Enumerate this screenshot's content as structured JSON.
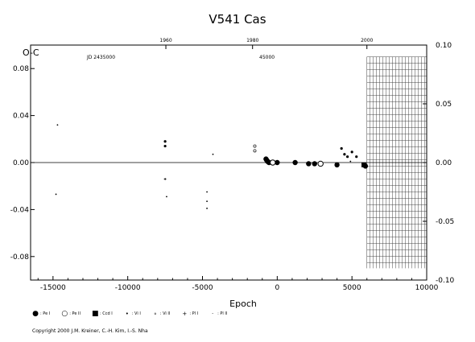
{
  "chart_data": {
    "type": "scatter",
    "title": "V541 Cas",
    "xlabel": "Epoch",
    "ylabel": "O-C",
    "xlim": [
      -16500,
      10000
    ],
    "ylim": [
      -0.1,
      0.1
    ],
    "x_ticks": [
      -15000,
      -10000,
      -5000,
      0,
      5000,
      10000
    ],
    "x_tick_labels": [
      "-15000",
      "-10000",
      "-5000",
      "0",
      "5000",
      "10000"
    ],
    "y_ticks_left": [
      0.08,
      0.04,
      0.0,
      -0.04,
      -0.08
    ],
    "y_tick_labels_left": [
      "0.08",
      "0.04",
      "0.00",
      "-0.04",
      "-0.08"
    ],
    "y_ticks_right": [
      0.1,
      0.05,
      0.0,
      -0.05,
      -0.1
    ],
    "y_tick_labels_right": [
      "0.10",
      "0.05",
      "0.00",
      "-0.05",
      "-0.10"
    ],
    "top_axis": {
      "ticks": [
        {
          "epoch": -7450,
          "label": "1960"
        },
        {
          "epoch": -1650,
          "label": "1980"
        },
        {
          "epoch": 6000,
          "label": "2000"
        }
      ],
      "jd_label": "JD 2435000",
      "jd2_label": "45000"
    },
    "hatched_region": {
      "x_from": 6000,
      "x_to": 10000,
      "y_from": -0.09,
      "y_to": 0.09
    },
    "series": [
      {
        "name": ": Pe I",
        "symbol": "big-filled",
        "points": [
          [
            -750,
            0.003
          ],
          [
            -700,
            0.002
          ],
          [
            -650,
            0.001
          ],
          [
            -600,
            0.0005
          ],
          [
            -550,
            0.0
          ],
          [
            0,
            0.0
          ],
          [
            1200,
            0.0
          ],
          [
            2100,
            -0.001
          ],
          [
            2500,
            -0.001
          ],
          [
            4000,
            -0.002
          ],
          [
            5900,
            -0.003
          ]
        ]
      },
      {
        "name": ": Pe II",
        "symbol": "big-open",
        "points": [
          [
            -300,
            0.0
          ],
          [
            2900,
            -0.001
          ]
        ]
      },
      {
        "name": ": Ccd I",
        "symbol": "filled-square",
        "points": [
          [
            5800,
            -0.002
          ]
        ]
      },
      {
        "name": ": Vi I",
        "symbol": "small-filled",
        "points": [
          [
            -7500,
            0.018
          ],
          [
            -7500,
            0.014
          ],
          [
            4300,
            0.012
          ],
          [
            4500,
            0.007
          ],
          [
            4700,
            0.005
          ],
          [
            5000,
            0.009
          ],
          [
            5300,
            0.005
          ]
        ]
      },
      {
        "name": ": Vi II",
        "symbol": "small-open",
        "points": [
          [
            -1500,
            0.014
          ],
          [
            -1500,
            0.01
          ]
        ]
      },
      {
        "name": ": Pl I",
        "symbol": "plus",
        "points": [
          [
            -7500,
            -0.014
          ]
        ]
      },
      {
        "name": ": Pl II",
        "symbol": "tiny-dot",
        "points": [
          [
            -14700,
            0.032
          ],
          [
            -14800,
            -0.027
          ],
          [
            -7400,
            -0.029
          ],
          [
            -4700,
            -0.025
          ],
          [
            -4700,
            -0.033
          ],
          [
            -4700,
            -0.039
          ],
          [
            -4300,
            0.007
          ],
          [
            4900,
            0.001
          ]
        ]
      }
    ]
  },
  "legend": [
    {
      "symbol": "●",
      "label": ": Pe I"
    },
    {
      "symbol": "○",
      "label": ": Pe II"
    },
    {
      "symbol": "■",
      "label": ": Ccd I"
    },
    {
      "symbol": "•",
      "label": ": Vi I"
    },
    {
      "symbol": "∘",
      "label": ": Vi II"
    },
    {
      "symbol": "+",
      "label": ": Pl I"
    },
    {
      "symbol": "·",
      "label": ": Pl II"
    }
  ],
  "copyright": "Copyright 2000 J.M. Kreiner, C.-H. Kim, I.-S. Nha"
}
